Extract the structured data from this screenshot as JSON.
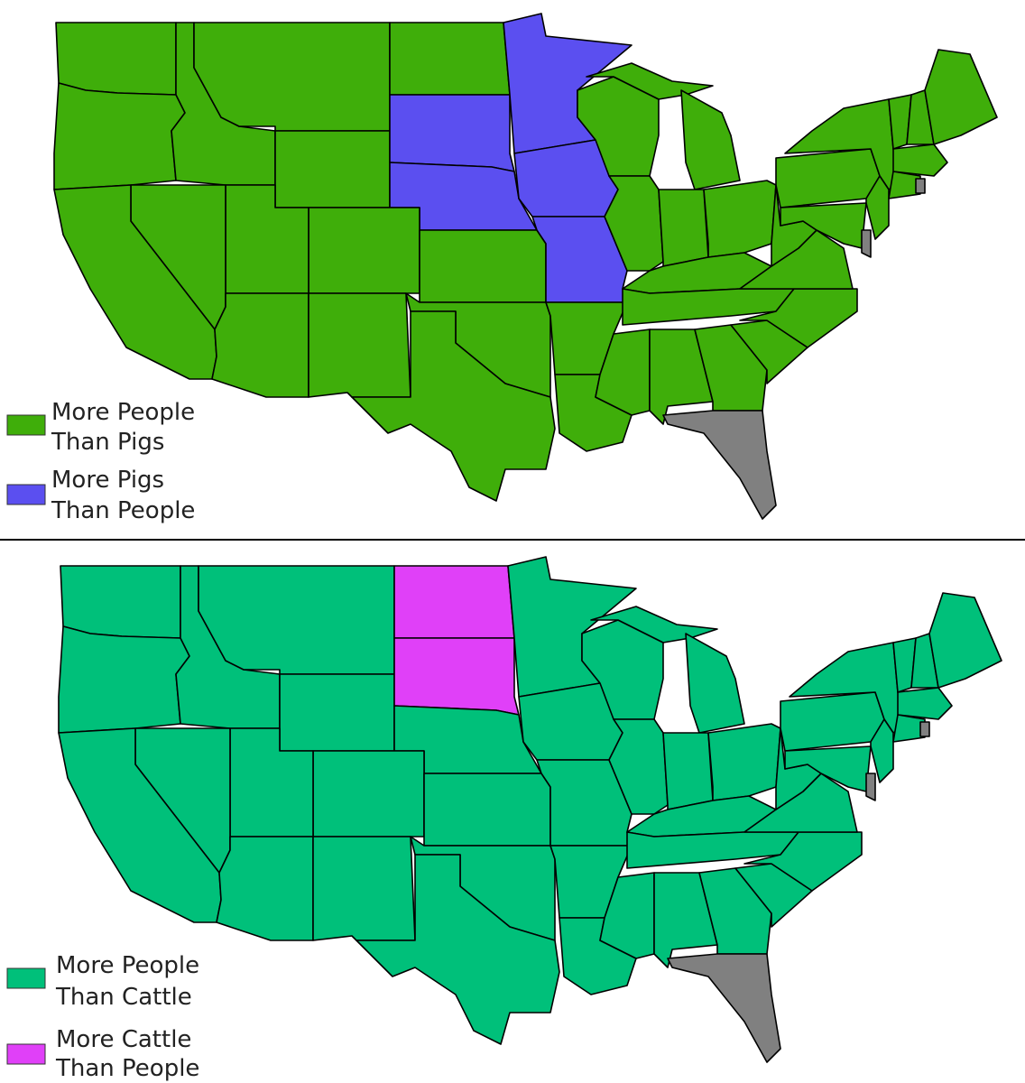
{
  "maps": [
    {
      "legend": [
        {
          "label": [
            "More People",
            "Than Pigs"
          ],
          "color": "#3fae0a"
        },
        {
          "label": [
            "More Pigs",
            "Than People"
          ],
          "color": "#5b4ff0"
        }
      ]
    },
    {
      "legend": [
        {
          "label": [
            "More People",
            "Than Cattle"
          ],
          "color": "#00c07a"
        },
        {
          "label": [
            "More Cattle",
            "Than People"
          ],
          "color": "#e040f8"
        }
      ]
    }
  ]
}
